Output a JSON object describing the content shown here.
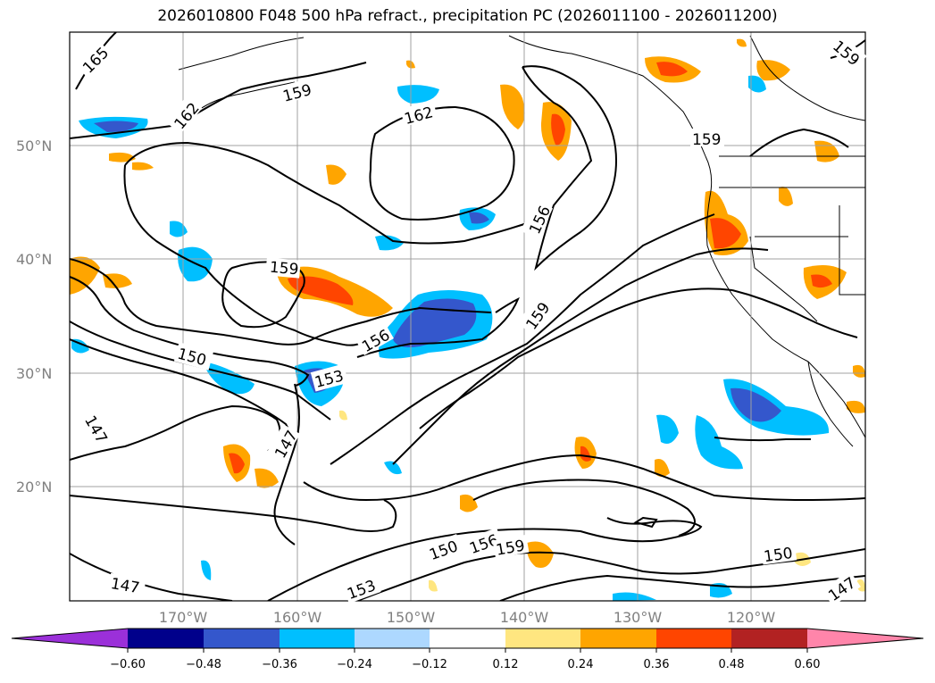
{
  "title": "2026010800 F048 500 hPa refract., precipitation PC (2026011100 - 2026011200)",
  "lat_labels": [
    "50°N",
    "40°N",
    "30°N",
    "20°N"
  ],
  "lon_labels": [
    "170°W",
    "160°W",
    "150°W",
    "140°W",
    "130°W",
    "120°W"
  ],
  "contour_labels": [
    "165",
    "162",
    "159",
    "162",
    "159",
    "156",
    "159",
    "156",
    "159",
    "153",
    "150",
    "147",
    "147",
    "150",
    "156",
    "159",
    "153",
    "147",
    "150",
    "147",
    "159"
  ],
  "colorbar": {
    "colors": [
      "#9b30d9",
      "#00008b",
      "#3457cc",
      "#00bfff",
      "#add8ff",
      "#ffffff",
      "#ffe680",
      "#ffa500",
      "#ff4500",
      "#b22222",
      "#ff85aa"
    ],
    "tick_labels": [
      "−0.60",
      "−0.48",
      "−0.36",
      "−0.24",
      "−0.12",
      "0.12",
      "0.24",
      "0.36",
      "0.48",
      "0.60"
    ]
  }
}
